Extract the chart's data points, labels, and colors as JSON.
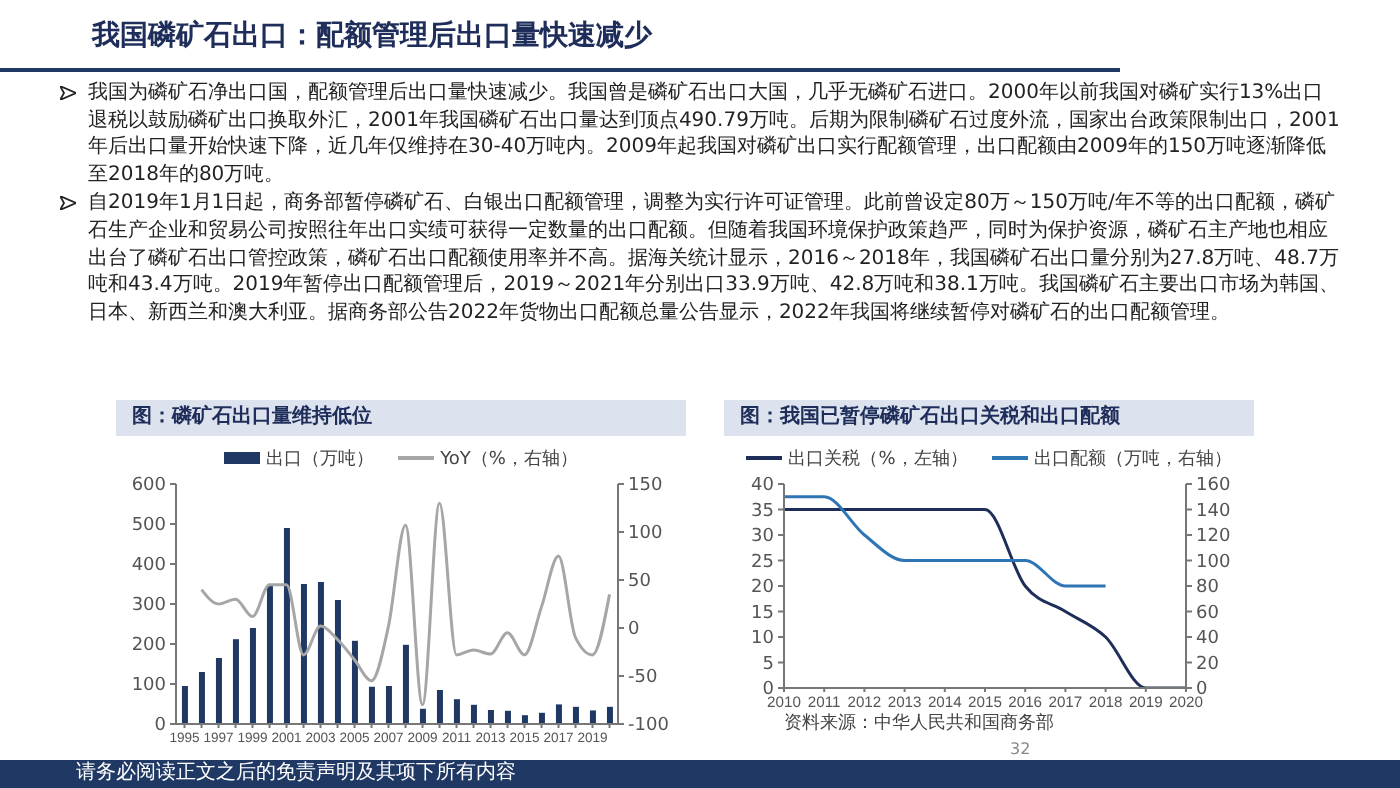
{
  "chart_data": [
    {
      "type": "other",
      "title": "我国磷矿石出口：配额管理后出口量快速减少",
      "annotations": [
        "我国为磷矿石净出口国，配额管理后出口量快速减少。我国曾是磷矿石出口大国，几乎无磷矿石进口。2000年以前我国对磷矿实行13%出口退税以鼓励磷矿出口换取外汇，2001年我国磷矿石出口量达到顶点490.79万吨。后期为限制磷矿石过度外流，国家出台政策限制出口，2001年后出口量开始快速下降，近几年仅维持在30-40万吨内。2009年起我国对磷矿出口实行配额管理，出口配额由2009年的150万吨逐渐降低至2018年的80万吨。",
        "自2019年1月1日起，商务部暂停磷矿石、白银出口配额管理，调整为实行许可证管理。此前曾设定80万～150万吨/年不等的出口配额，磷矿石生产企业和贸易公司按照往年出口实绩可获得一定数量的出口配额。但随着我国环境保护政策趋严，同时为保护资源，磷矿石主产地也相应出台了磷矿石出口管控政策，磷矿石出口配额使用率并不高。据海关统计显示，2016～2018年，我国磷矿石出口量分别为27.8万吨、48.7万吨和43.4万吨。2019年暂停出口配额管理后，2019～2021年分别出口33.9万吨、42.8万吨和38.1万吨。我国磷矿石主要出口市场为韩国、日本、新西兰和澳大利亚。据商务部公告2022年货物出口配额总量公告显示，2022年我国将继续暂停对磷矿石的出口配额管理。",
        "32",
        "请务必阅读正文之后的免责声明及其项下所有内容"
      ]
    },
    {
      "type": "bar",
      "title": "图：磷矿石出口量维持低位",
      "categories": [
        "1995",
        null,
        "1997",
        null,
        "1999",
        null,
        "2001",
        null,
        "2003",
        null,
        "2005",
        null,
        "2007",
        null,
        "2009",
        null,
        "2011",
        null,
        "2013",
        null,
        "2015",
        null,
        "2017",
        null,
        "2019",
        null
      ],
      "series": [
        {
          "name": "出口（万吨）",
          "type": "bar",
          "color": "#1f3864",
          "values": [
            95,
            130,
            165,
            212,
            240,
            345,
            490,
            350,
            355,
            310,
            208,
            93,
            95,
            198,
            38,
            85,
            62,
            48,
            35,
            33,
            22,
            28,
            49,
            43,
            34,
            43
          ]
        },
        {
          "name": "YoY（%，右轴）",
          "type": "line",
          "axis": "y2",
          "color": "#a6a6a6",
          "values": [
            null,
            40,
            25,
            30,
            12,
            45,
            45,
            -28,
            2,
            -12,
            -33,
            -55,
            2,
            107,
            -80,
            130,
            -28,
            -23,
            -27,
            -5,
            -28,
            22,
            75,
            -10,
            -28,
            35
          ]
        }
      ],
      "ylim": [
        0,
        600
      ],
      "yticks": [
        0,
        100,
        200,
        300,
        400,
        500,
        600
      ],
      "y2lim": [
        -100,
        150
      ],
      "y2ticks": [
        -100,
        -50,
        0,
        50,
        100,
        150
      ],
      "legend": "top",
      "marker": "none"
    },
    {
      "type": "line",
      "title": "图：我国已暂停磷矿石出口关税和出口配额",
      "categories": [
        "2010",
        "2011",
        "2012",
        "2013",
        "2014",
        "2015",
        "2016",
        "2017",
        "2018",
        "2019",
        "2020"
      ],
      "series": [
        {
          "name": "出口关税（%，左轴）",
          "color": "#1f2d5a",
          "values": [
            35,
            35,
            35,
            35,
            35,
            35,
            20,
            15,
            10,
            0,
            0
          ]
        },
        {
          "name": "出口配额（万吨，右轴）",
          "axis": "y2",
          "color": "#2e75b6",
          "values": [
            150,
            150,
            120,
            100,
            100,
            100,
            100,
            80,
            80,
            null,
            null
          ]
        }
      ],
      "ylim": [
        0,
        40
      ],
      "yticks": [
        0,
        5,
        10,
        15,
        20,
        25,
        30,
        35,
        40
      ],
      "y2lim": [
        0,
        160
      ],
      "y2ticks": [
        0,
        20,
        40,
        60,
        80,
        100,
        120,
        140,
        160
      ],
      "legend": "top",
      "marker": "none",
      "annotations": [
        "资料来源：中华人民共和国商务部"
      ]
    }
  ]
}
